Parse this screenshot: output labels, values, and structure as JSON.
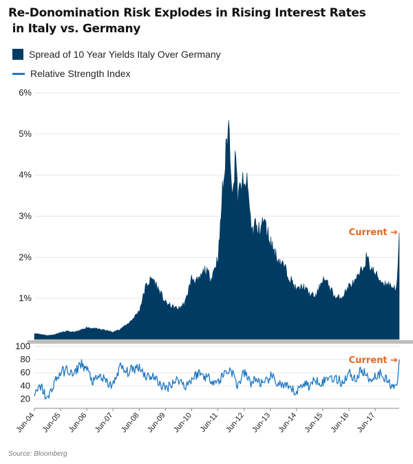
{
  "title_line1": "Re-Donomination Risk Explodes in Rising Interest Rates",
  "title_line2": " in Italy vs. Germany",
  "source": "Source:  Bloomberg",
  "colors": {
    "spread": "#003b63",
    "rsi": "#1f77c4",
    "annotation": "#e8671c",
    "grid": "#e6e6e6",
    "axis": "#888888"
  },
  "chart_data": [
    {
      "type": "area",
      "title": "",
      "xlabel": "",
      "ylabel": "",
      "ylim": [
        0,
        6
      ],
      "grid": true,
      "legend_position": "top-left",
      "y_ticks": [
        "1%",
        "2%",
        "3%",
        "4%",
        "5%",
        "6%"
      ],
      "y_tick_values": [
        1,
        2,
        3,
        4,
        5,
        6
      ],
      "series": [
        {
          "name": "Spread of 10 Year Yields Italy Over Germany",
          "unit": "%",
          "x": [
            "Jun-04",
            "Sep-04",
            "Dec-04",
            "Mar-05",
            "Jun-05",
            "Sep-05",
            "Dec-05",
            "Mar-06",
            "Jun-06",
            "Sep-06",
            "Dec-06",
            "Mar-07",
            "Jun-07",
            "Sep-07",
            "Dec-07",
            "Mar-08",
            "Jun-08",
            "Sep-08",
            "Dec-08",
            "Mar-09",
            "Jun-09",
            "Sep-09",
            "Dec-09",
            "Mar-10",
            "Jun-10",
            "Sep-10",
            "Dec-10",
            "Mar-11",
            "Jun-11",
            "Jul-11",
            "Aug-11",
            "Sep-11",
            "Oct-11",
            "Nov-11",
            "Dec-11",
            "Jan-12",
            "Feb-12",
            "Mar-12",
            "Apr-12",
            "May-12",
            "Jun-12",
            "Jul-12",
            "Aug-12",
            "Sep-12",
            "Oct-12",
            "Nov-12",
            "Dec-12",
            "Mar-13",
            "Jun-13",
            "Sep-13",
            "Dec-13",
            "Mar-14",
            "Jun-14",
            "Sep-14",
            "Dec-14",
            "Mar-15",
            "Jun-15",
            "Sep-15",
            "Dec-15",
            "Mar-16",
            "Jun-16",
            "Sep-16",
            "Dec-16",
            "Feb-17",
            "Apr-17",
            "Jun-17",
            "Sep-17",
            "Dec-17",
            "Mar-18",
            "Apr-18",
            "May-18"
          ],
          "values": [
            0.15,
            0.13,
            0.1,
            0.12,
            0.17,
            0.2,
            0.18,
            0.22,
            0.3,
            0.27,
            0.25,
            0.22,
            0.18,
            0.25,
            0.35,
            0.5,
            0.7,
            1.3,
            1.5,
            1.2,
            0.9,
            0.8,
            0.75,
            0.9,
            1.5,
            1.4,
            1.7,
            1.5,
            2.0,
            2.6,
            3.6,
            4.0,
            4.8,
            5.25,
            4.2,
            3.4,
            4.8,
            3.4,
            3.6,
            3.9,
            3.6,
            3.9,
            3.5,
            2.9,
            2.6,
            2.9,
            2.6,
            2.9,
            2.4,
            2.0,
            1.8,
            1.5,
            1.2,
            1.3,
            1.1,
            1.05,
            1.5,
            1.3,
            1.0,
            1.05,
            1.3,
            1.4,
            1.7,
            2.0,
            1.75,
            1.6,
            1.4,
            1.35,
            1.25,
            1.3,
            2.6
          ]
        }
      ],
      "annotations": [
        {
          "text": "Current  ➔",
          "at": "May-18"
        }
      ]
    },
    {
      "type": "line",
      "title": "",
      "xlabel": "",
      "ylabel": "",
      "ylim": [
        10,
        100
      ],
      "y_ticks": [
        "20",
        "40",
        "60",
        "80",
        "100"
      ],
      "y_tick_values": [
        20,
        40,
        60,
        80,
        100
      ],
      "x_ticks": [
        "Jun-04",
        "Jun-05",
        "Jun-06",
        "Jun-07",
        "Jun-08",
        "Jun-09",
        "Jun-10",
        "Jun-11",
        "Jun-12",
        "Jun-13",
        "Jun-14",
        "Jun-15",
        "Jun-16",
        "Jun-17"
      ],
      "series": [
        {
          "name": "Relative Strength Index",
          "x": [
            "Jun-04",
            "Sep-04",
            "Dec-04",
            "Mar-05",
            "Jun-05",
            "Sep-05",
            "Dec-05",
            "Mar-06",
            "Jun-06",
            "Sep-06",
            "Dec-06",
            "Mar-07",
            "Jun-07",
            "Sep-07",
            "Dec-07",
            "Mar-08",
            "Jun-08",
            "Sep-08",
            "Dec-08",
            "Mar-09",
            "Jun-09",
            "Sep-09",
            "Dec-09",
            "Mar-10",
            "Jun-10",
            "Sep-10",
            "Dec-10",
            "Mar-11",
            "Jun-11",
            "Sep-11",
            "Dec-11",
            "Mar-12",
            "Jun-12",
            "Sep-12",
            "Dec-12",
            "Mar-13",
            "Jun-13",
            "Sep-13",
            "Dec-13",
            "Mar-14",
            "Jun-14",
            "Sep-14",
            "Dec-14",
            "Mar-15",
            "Jun-15",
            "Sep-15",
            "Dec-15",
            "Mar-16",
            "Jun-16",
            "Sep-16",
            "Dec-16",
            "Mar-17",
            "Jun-17",
            "Sep-17",
            "Dec-17",
            "Mar-18",
            "Apr-18",
            "May-18"
          ],
          "values": [
            25,
            40,
            18,
            45,
            60,
            65,
            55,
            75,
            65,
            45,
            55,
            45,
            40,
            70,
            60,
            65,
            70,
            55,
            55,
            45,
            35,
            45,
            50,
            40,
            50,
            60,
            55,
            50,
            45,
            60,
            65,
            40,
            60,
            45,
            50,
            40,
            55,
            45,
            40,
            35,
            30,
            45,
            40,
            50,
            45,
            55,
            50,
            45,
            60,
            50,
            65,
            50,
            55,
            60,
            45,
            40,
            35,
            80
          ]
        }
      ],
      "annotations": [
        {
          "text": "Current  ➔",
          "at": "May-18"
        }
      ]
    }
  ]
}
